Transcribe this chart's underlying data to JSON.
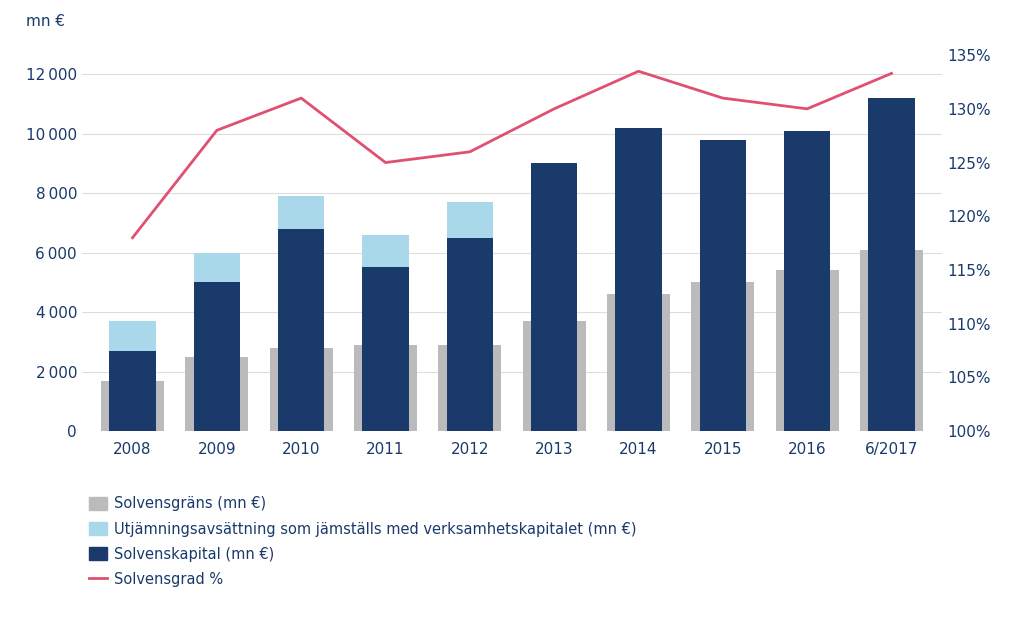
{
  "years": [
    "2008",
    "2009",
    "2010",
    "2011",
    "2012",
    "2013",
    "2014",
    "2015",
    "2016",
    "6/2017"
  ],
  "solvenskapital": [
    2700,
    5000,
    6800,
    5500,
    6500,
    9000,
    10200,
    9800,
    10100,
    11200
  ],
  "utjamning": [
    1000,
    1000,
    1100,
    1100,
    1200,
    0,
    0,
    0,
    0,
    0
  ],
  "solvensgrans": [
    1700,
    2500,
    2800,
    2900,
    2900,
    3700,
    4600,
    5000,
    5400,
    6100
  ],
  "solvensgrad": [
    118.0,
    128.0,
    131.0,
    125.0,
    126.0,
    130.0,
    133.5,
    131.0,
    130.0,
    133.3
  ],
  "bar_color_dark": "#1A3A6B",
  "bar_color_light": "#A8D8EA",
  "bar_color_gray": "#BBBBBB",
  "line_color": "#E05070",
  "ylabel_left": "mn €",
  "ylim_left": [
    0,
    13000
  ],
  "ylim_right": [
    100,
    136
  ],
  "yticks_left": [
    0,
    2000,
    4000,
    6000,
    8000,
    10000,
    12000
  ],
  "yticks_right": [
    100,
    105,
    110,
    115,
    120,
    125,
    130,
    135
  ],
  "legend_gray": "Solvensgräns (mn €)",
  "legend_light": "Utjämningsavsättning som jämställs med verksamhetskapitalet (mn €)",
  "legend_dark": "Solvenskapital (mn €)",
  "legend_line": "Solvensgrad %",
  "background_color": "#FFFFFF",
  "grid_color": "#DDDDDD",
  "text_color": "#1A3A6B"
}
